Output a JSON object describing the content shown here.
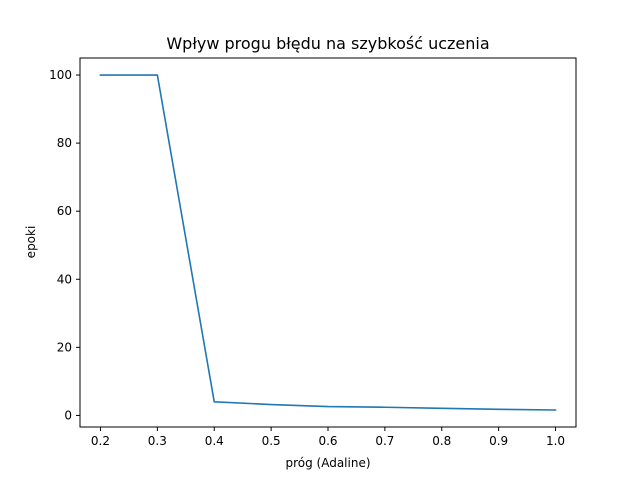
{
  "chart_data": {
    "type": "line",
    "title": "Wpływ progu błędu na szybkość uczenia",
    "xlabel": "próg (Adaline)",
    "ylabel": "epoki",
    "xlim": [
      0.164,
      1.036
    ],
    "ylim": [
      -3.4,
      105.0
    ],
    "grid": false,
    "x_ticks": [
      0.2,
      0.3,
      0.4,
      0.5,
      0.6,
      0.7,
      0.8,
      0.9,
      1.0
    ],
    "x_tick_labels": [
      "0.2",
      "0.3",
      "0.4",
      "0.5",
      "0.6",
      "0.7",
      "0.8",
      "0.9",
      "1.0"
    ],
    "y_ticks": [
      0,
      20,
      40,
      60,
      80,
      100
    ],
    "y_tick_labels": [
      "0",
      "20",
      "40",
      "60",
      "80",
      "100"
    ],
    "series": [
      {
        "color": "#1f77b4",
        "x": [
          0.2,
          0.3,
          0.4,
          0.5,
          0.6,
          0.7,
          0.8,
          0.9,
          1.0
        ],
        "y": [
          100,
          100,
          4,
          3.2,
          2.6,
          2.4,
          2.1,
          1.8,
          1.6
        ]
      }
    ]
  }
}
